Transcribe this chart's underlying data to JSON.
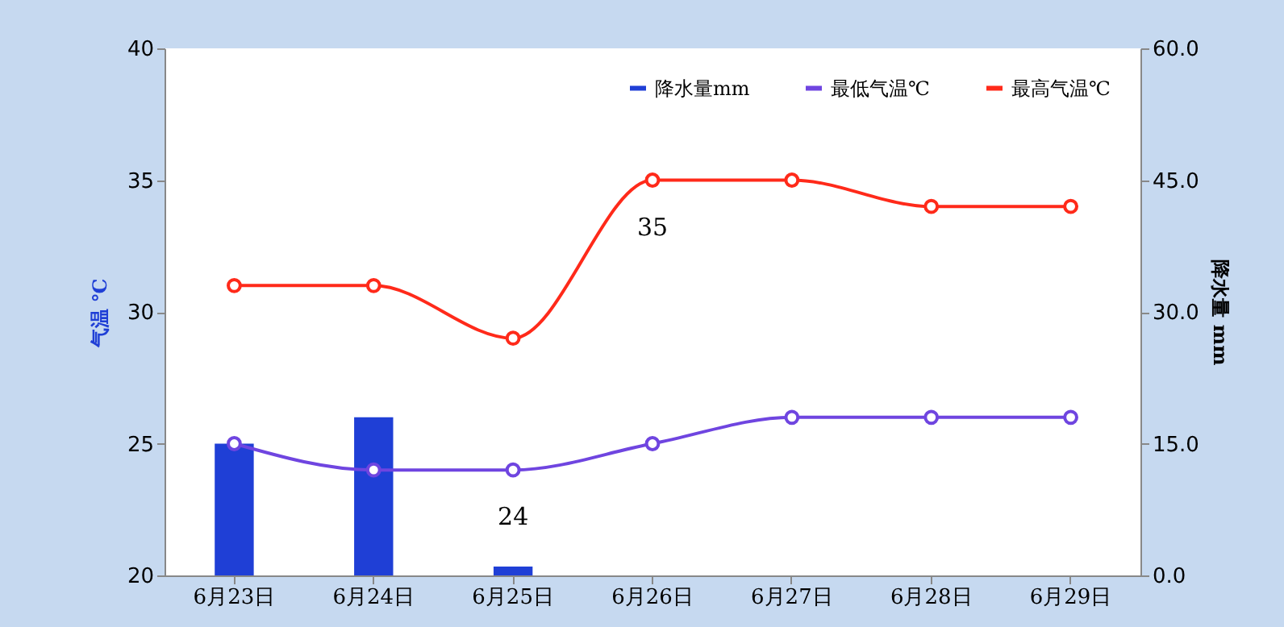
{
  "chart_data": {
    "type": "line",
    "categories": [
      "6月23日",
      "6月24日",
      "6月25日",
      "6月26日",
      "6月27日",
      "6月28日",
      "6月29日"
    ],
    "series": [
      {
        "name": "降水量mm",
        "type": "bar",
        "axis": "y2",
        "color": "#1f3fd6",
        "values": [
          15,
          18,
          1,
          0,
          0,
          0,
          0
        ]
      },
      {
        "name": "最低气温℃",
        "color": "#6f45e0",
        "values": [
          25,
          24,
          24,
          25,
          26,
          26,
          26
        ]
      },
      {
        "name": "最高气温℃",
        "color": "#ff2a1a",
        "values": [
          31,
          31,
          29,
          35,
          35,
          34,
          34
        ]
      }
    ],
    "ylabel": "气温 ℃",
    "y2label": "降水量 mm",
    "ylim": [
      20,
      40
    ],
    "yticks": [
      20,
      25,
      30,
      35,
      40
    ],
    "y2lim": [
      0,
      60
    ],
    "y2ticks": [
      {
        "value": 0,
        "label": "0.0"
      },
      {
        "value": 15,
        "label": "15.0"
      },
      {
        "value": 30,
        "label": "30.0"
      },
      {
        "value": 45,
        "label": "45.0"
      },
      {
        "value": 60,
        "label": "60.0"
      }
    ],
    "annotations": [
      {
        "text": "35",
        "x": "6月26日",
        "y": 35
      },
      {
        "text": "24",
        "x": "6月25日",
        "y": 24
      }
    ],
    "marker": "circle",
    "legend": "top right",
    "grid": false
  }
}
